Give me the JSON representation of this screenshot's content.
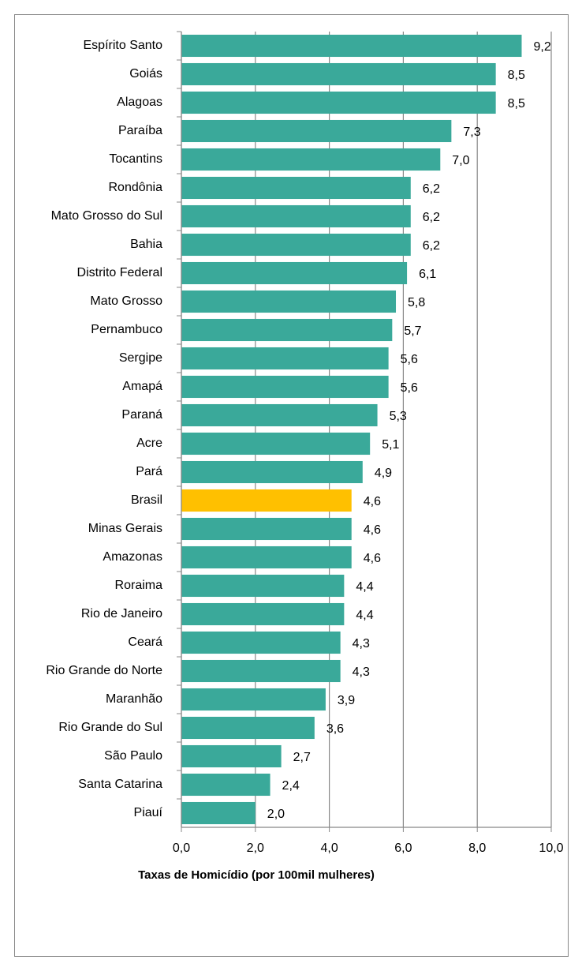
{
  "chart_data": {
    "type": "bar",
    "orientation": "horizontal",
    "x_label": "Taxas de Homicídio (por 100mil mulheres)",
    "categories": [
      "Espírito Santo",
      "Goiás",
      "Alagoas",
      "Paraíba",
      "Tocantins",
      "Rondônia",
      "Mato Grosso do Sul",
      "Bahia",
      "Distrito Federal",
      "Mato Grosso",
      "Pernambuco",
      "Sergipe",
      "Amapá",
      "Paraná",
      "Acre",
      "Pará",
      "Brasil",
      "Minas Gerais",
      "Amazonas",
      "Roraima",
      "Rio de Janeiro",
      "Ceará",
      "Rio Grande do Norte",
      "Maranhão",
      "Rio Grande do Sul",
      "São Paulo",
      "Santa Catarina",
      "Piauí"
    ],
    "values": [
      9.2,
      8.5,
      8.5,
      7.3,
      7.0,
      6.2,
      6.2,
      6.2,
      6.1,
      5.8,
      5.7,
      5.6,
      5.6,
      5.3,
      5.1,
      4.9,
      4.6,
      4.6,
      4.6,
      4.4,
      4.4,
      4.3,
      4.3,
      3.9,
      3.6,
      2.7,
      2.4,
      2.0
    ],
    "value_labels": [
      "9,2",
      "8,5",
      "8,5",
      "7,3",
      "7,0",
      "6,2",
      "6,2",
      "6,2",
      "6,1",
      "5,8",
      "5,7",
      "5,6",
      "5,6",
      "5,3",
      "5,1",
      "4,9",
      "4,6",
      "4,6",
      "4,6",
      "4,4",
      "4,4",
      "4,3",
      "4,3",
      "3,9",
      "3,6",
      "2,7",
      "2,4",
      "2,0"
    ],
    "colors": [
      "#3aa99a",
      "#3aa99a",
      "#3aa99a",
      "#3aa99a",
      "#3aa99a",
      "#3aa99a",
      "#3aa99a",
      "#3aa99a",
      "#3aa99a",
      "#3aa99a",
      "#3aa99a",
      "#3aa99a",
      "#3aa99a",
      "#3aa99a",
      "#3aa99a",
      "#3aa99a",
      "#ffc000",
      "#3aa99a",
      "#3aa99a",
      "#3aa99a",
      "#3aa99a",
      "#3aa99a",
      "#3aa99a",
      "#3aa99a",
      "#3aa99a",
      "#3aa99a",
      "#3aa99a",
      "#3aa99a"
    ],
    "xlim": [
      0,
      10
    ],
    "xticks": [
      {
        "value": 0,
        "label": "0,0"
      },
      {
        "value": 2,
        "label": "2,0"
      },
      {
        "value": 4,
        "label": "4,0"
      },
      {
        "value": 6,
        "label": "6,0"
      },
      {
        "value": 8,
        "label": "8,0"
      },
      {
        "value": 10,
        "label": "10,0"
      }
    ],
    "grid": true
  }
}
